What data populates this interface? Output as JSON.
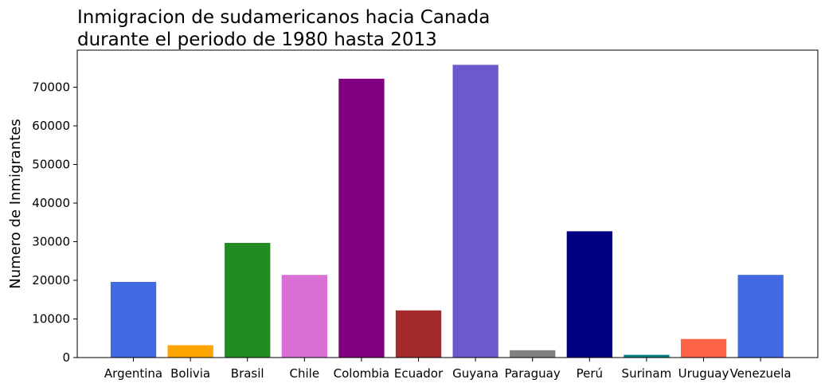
{
  "chart_data": {
    "type": "bar",
    "title_lines": [
      "Inmigracion de sudamericanos hacia Canada",
      "durante el periodo de 1980 hasta 2013"
    ],
    "xlabel": "",
    "ylabel": "Numero de Inmigrantes",
    "categories": [
      "Argentina",
      "Bolivia",
      "Brasil",
      "Chile",
      "Colombia",
      "Ecuador",
      "Guyana",
      "Paraguay",
      "Perú",
      "Surinam",
      "Uruguay",
      "Venezuela"
    ],
    "values": [
      19600,
      3200,
      29700,
      21400,
      72200,
      12200,
      75800,
      1900,
      32700,
      700,
      4800,
      21400
    ],
    "colors": [
      "#4169e1",
      "#ffa500",
      "#228b22",
      "#da70d6",
      "#800080",
      "#a52a2a",
      "#6a5acd",
      "#808080",
      "#000080",
      "#008080",
      "#ff6347",
      "#4169e1"
    ],
    "ylim": [
      0,
      79600
    ],
    "yticks": [
      0,
      10000,
      20000,
      30000,
      40000,
      50000,
      60000,
      70000
    ],
    "grid": false,
    "legend": "none"
  }
}
